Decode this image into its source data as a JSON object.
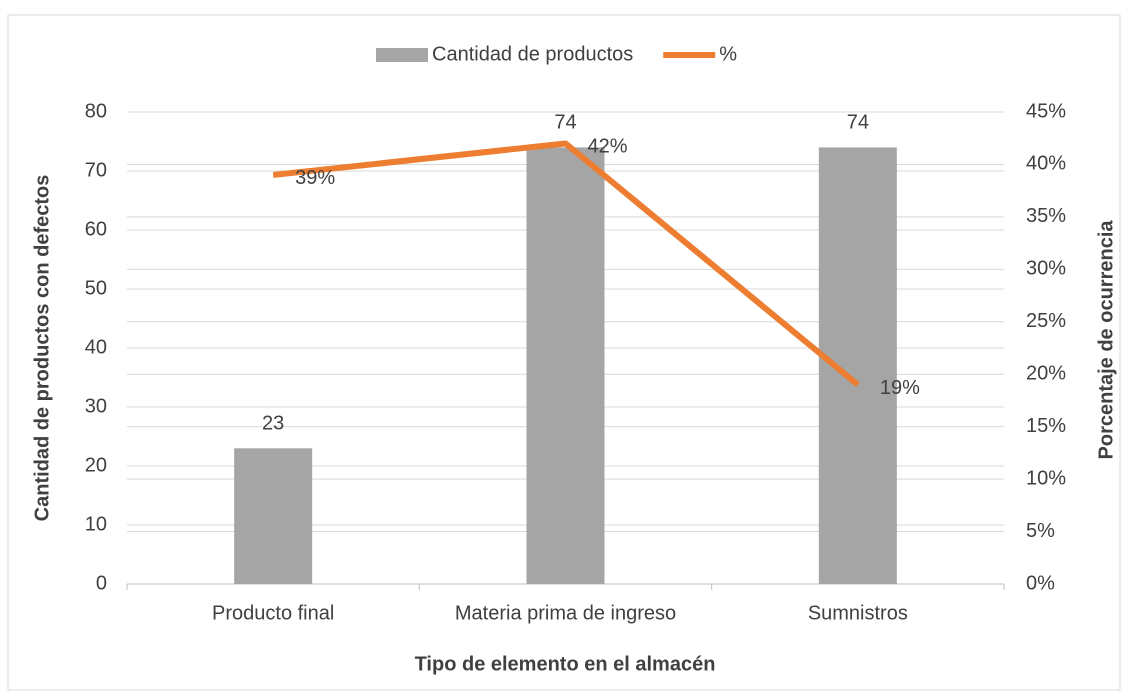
{
  "chart_data": {
    "type": "bar_line",
    "categories": [
      "Producto final",
      "Materia prima de ingreso",
      "Sumnistros"
    ],
    "series": [
      {
        "name": "Cantidad de productos",
        "type": "bar",
        "color": "#a5a5a5",
        "values": [
          23,
          74,
          74
        ]
      },
      {
        "name": "%",
        "type": "line",
        "axis": "y2",
        "color": "#ed7d31",
        "values": [
          39,
          42,
          19
        ],
        "value_labels": [
          "39%",
          "42%",
          "19%"
        ]
      }
    ],
    "x_label": "Tipo de elemento en el almacén",
    "y_label": "Cantidad de productos con defectos",
    "y2_label": "Porcentaje  de ocurrencia",
    "ylim": [
      0,
      80
    ],
    "yticks": [
      0,
      10,
      20,
      30,
      40,
      50,
      60,
      70,
      80
    ],
    "y2lim": [
      0,
      45
    ],
    "y2ticks": [
      {
        "value": 0,
        "label": "0%"
      },
      {
        "value": 5,
        "label": "5%"
      },
      {
        "value": 10,
        "label": "10%"
      },
      {
        "value": 15,
        "label": "15%"
      },
      {
        "value": 20,
        "label": "20%"
      },
      {
        "value": 25,
        "label": "25%"
      },
      {
        "value": 30,
        "label": "30%"
      },
      {
        "value": 35,
        "label": "35%"
      },
      {
        "value": 40,
        "label": "40%"
      },
      {
        "value": 45,
        "label": "45%"
      }
    ],
    "legend": "top",
    "grid": true
  }
}
